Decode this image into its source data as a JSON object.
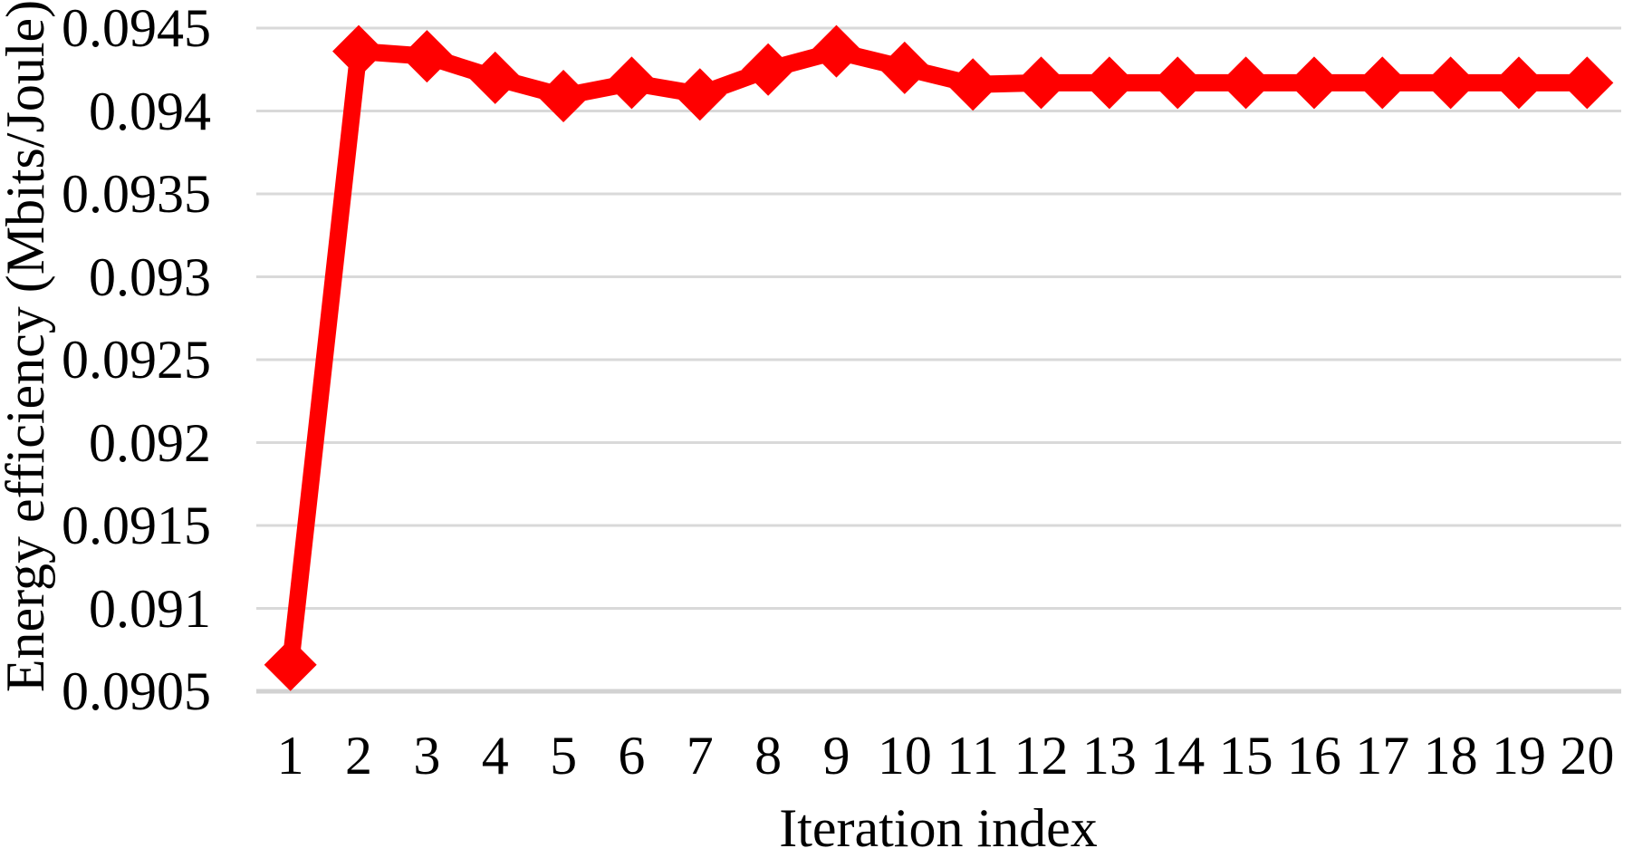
{
  "chart_data": {
    "type": "line",
    "title": "",
    "xlabel": "Iteration index",
    "ylabel": "Energy efficiency (Mbits/Joule)",
    "x": [
      1,
      2,
      3,
      4,
      5,
      6,
      7,
      8,
      9,
      10,
      11,
      12,
      13,
      14,
      15,
      16,
      17,
      18,
      19,
      20
    ],
    "series": [
      {
        "name": "Energy efficiency",
        "values": [
          0.09066,
          0.09436,
          0.09433,
          0.0942,
          0.09409,
          0.09417,
          0.0941,
          0.09425,
          0.09436,
          0.09426,
          0.09416,
          0.09417,
          0.09417,
          0.09417,
          0.09417,
          0.09417,
          0.09417,
          0.09417,
          0.09417,
          0.09417
        ]
      }
    ],
    "ylim": [
      0.0905,
      0.0945
    ],
    "y_tick_labels": [
      "0.0945",
      "0.094",
      "0.0935",
      "0.093",
      "0.0925",
      "0.092",
      "0.0915",
      "0.091",
      "0.0905"
    ],
    "x_tick_labels": [
      "1",
      "2",
      "3",
      "4",
      "5",
      "6",
      "7",
      "8",
      "9",
      "10",
      "11",
      "12",
      "13",
      "14",
      "15",
      "16",
      "17",
      "18",
      "19",
      "20"
    ],
    "grid": "horizontal",
    "legend": "none",
    "marker": "diamond",
    "line_color": "#FF0000",
    "gridline_color": "#D9D9D9",
    "axis_line_color": "#D2D2D2",
    "text_color": "#000000"
  }
}
